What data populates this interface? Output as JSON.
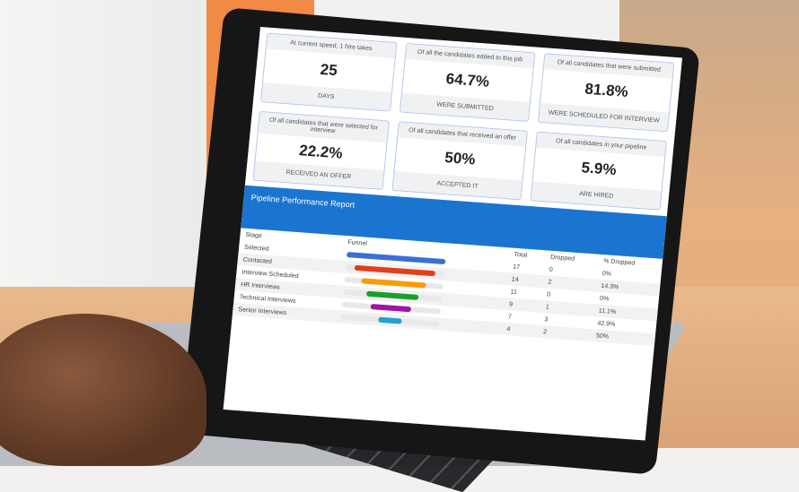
{
  "cards": [
    {
      "caption": "At current speed, 1 hire takes",
      "value": "25",
      "footer": "DAYS"
    },
    {
      "caption": "Of all the candidates added to this job",
      "value": "64.7%",
      "footer": "WERE SUBMITTED"
    },
    {
      "caption": "Of all candidates that were submitted",
      "value": "81.8%",
      "footer": "WERE SCHEDULED FOR INTERVIEW"
    },
    {
      "caption": "Of all candidates that were selected for interview",
      "value": "22.2%",
      "footer": "RECEIVED AN OFFER"
    },
    {
      "caption": "Of all candidates that received an offer",
      "value": "50%",
      "footer": "ACCEPTED IT"
    },
    {
      "caption": "Of all candidates in your pipeline",
      "value": "5.9%",
      "footer": "ARE HIRED"
    }
  ],
  "report": {
    "title": "Pipeline Performance Report",
    "columns": {
      "stage": "Stage",
      "funnel": "Funnel",
      "total": "Total",
      "dropped": "Dropped",
      "pct": "% Dropped"
    },
    "rows": [
      {
        "stage": "Selected",
        "total": "17",
        "dropped": "0",
        "pct": "0%",
        "color": "#3a6fd8",
        "level": 1.0
      },
      {
        "stage": "Contacted",
        "total": "14",
        "dropped": "2",
        "pct": "14.3%",
        "color": "#e0401e",
        "level": 0.82
      },
      {
        "stage": "Interview Scheduled",
        "total": "11",
        "dropped": "0",
        "pct": "0%",
        "color": "#ff9a00",
        "level": 0.65
      },
      {
        "stage": "HR Interviews",
        "total": "9",
        "dropped": "1",
        "pct": "11.1%",
        "color": "#1aa02a",
        "level": 0.53
      },
      {
        "stage": "Technical Interviews",
        "total": "7",
        "dropped": "3",
        "pct": "42.9%",
        "color": "#a012a8",
        "level": 0.41
      },
      {
        "stage": "Senior Interviews",
        "total": "4",
        "dropped": "2",
        "pct": "50%",
        "color": "#1fa3d0",
        "level": 0.24
      }
    ]
  }
}
